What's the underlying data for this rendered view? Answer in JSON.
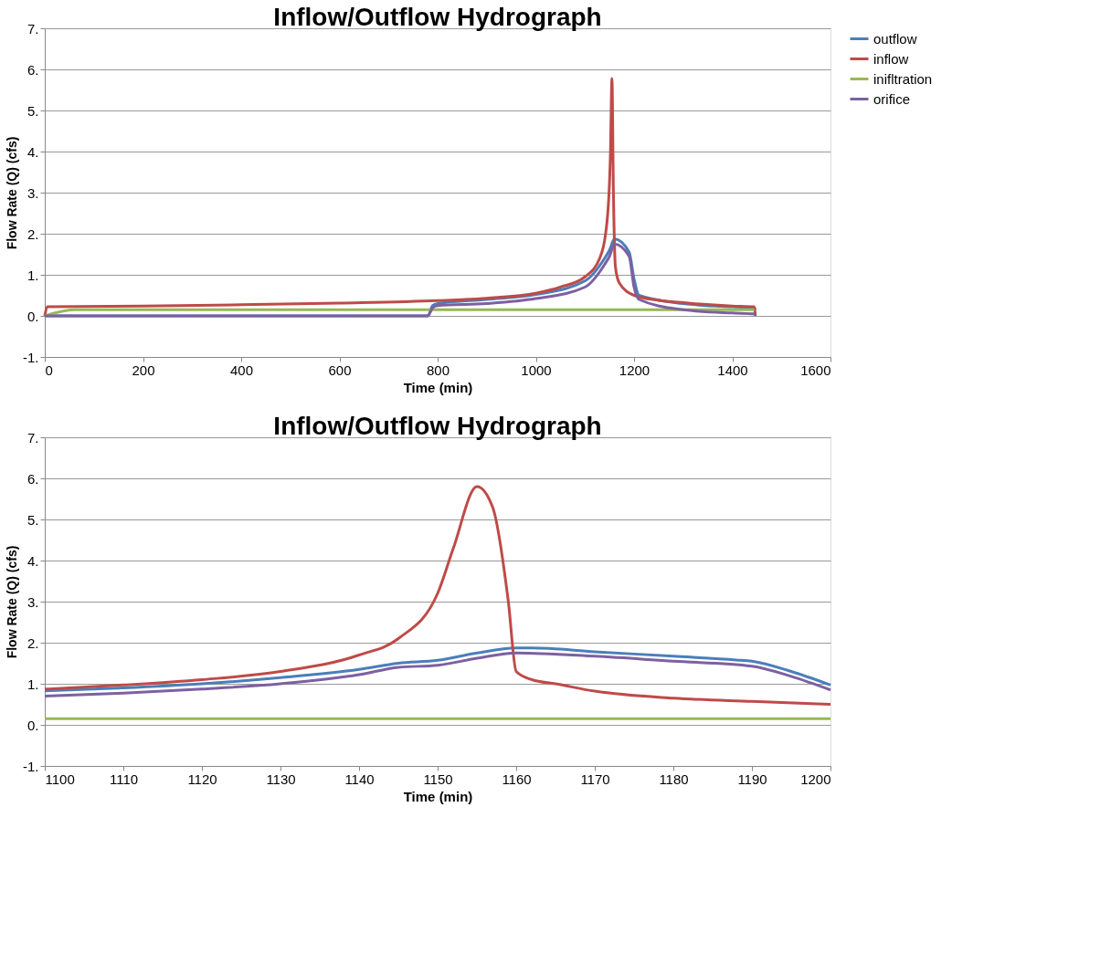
{
  "chart_data": [
    {
      "type": "line",
      "title": "Inflow/Outflow Hydrograph",
      "xlabel": "Time (min)",
      "ylabel": "Flow Rate (Q) (cfs)",
      "xlim": [
        0,
        1600
      ],
      "xticks": [
        0,
        200,
        400,
        600,
        800,
        1000,
        1200,
        1400,
        1600
      ],
      "ylim": [
        -1,
        7
      ],
      "yticks": [
        {
          "value": -1,
          "label": "-1."
        },
        {
          "value": 0,
          "label": "0."
        },
        {
          "value": 1,
          "label": "1."
        },
        {
          "value": 2,
          "label": "2."
        },
        {
          "value": 3,
          "label": "3."
        },
        {
          "value": 4,
          "label": "4."
        },
        {
          "value": 5,
          "label": "5."
        },
        {
          "value": 6,
          "label": "6."
        },
        {
          "value": 7,
          "label": "7."
        }
      ],
      "grid": "y",
      "legend": "right",
      "marker": "none",
      "line_style": "solid",
      "series": [
        {
          "name": "outflow",
          "color": "#4a7ebb",
          "x": [
            0,
            780,
            790,
            800,
            900,
            1000,
            1100,
            1140,
            1150,
            1160,
            1190,
            1200,
            1210,
            1300,
            1400,
            1445,
            1447
          ],
          "values": [
            0,
            0,
            0.25,
            0.3,
            0.4,
            0.52,
            0.85,
            1.4,
            1.6,
            1.87,
            1.55,
            0.9,
            0.5,
            0.3,
            0.22,
            0.2,
            0.15
          ]
        },
        {
          "name": "inflow",
          "color": "#be4b48",
          "x": [
            0,
            5,
            200,
            400,
            600,
            800,
            900,
            1000,
            1050,
            1100,
            1130,
            1145,
            1152,
            1155,
            1158,
            1162,
            1170,
            1200,
            1250,
            1300,
            1400,
            1445,
            1447
          ],
          "values": [
            0,
            0.22,
            0.24,
            0.27,
            0.31,
            0.37,
            0.43,
            0.55,
            0.7,
            0.95,
            1.4,
            2.3,
            4.0,
            5.78,
            3.0,
            1.2,
            0.8,
            0.5,
            0.38,
            0.32,
            0.24,
            0.22,
            0
          ]
        },
        {
          "name": "inifltration",
          "color": "#98b954",
          "x": [
            0,
            60,
            1445
          ],
          "values": [
            0,
            0.15,
            0.15
          ]
        },
        {
          "name": "orifice",
          "color": "#7d60a0",
          "x": [
            0,
            780,
            790,
            800,
            900,
            1000,
            1100,
            1140,
            1150,
            1160,
            1190,
            1200,
            1210,
            1300,
            1400,
            1445,
            1447
          ],
          "values": [
            0,
            0,
            0.2,
            0.25,
            0.3,
            0.42,
            0.7,
            1.25,
            1.45,
            1.75,
            1.45,
            0.7,
            0.4,
            0.15,
            0.07,
            0.05,
            0
          ]
        }
      ]
    },
    {
      "type": "line",
      "title": "Inflow/Outflow Hydrograph",
      "xlabel": "Time (min)",
      "ylabel": "Flow Rate (Q) (cfs)",
      "xlim": [
        1100,
        1200
      ],
      "xticks": [
        1100,
        1110,
        1120,
        1130,
        1140,
        1150,
        1160,
        1170,
        1180,
        1190,
        1200
      ],
      "ylim": [
        -1,
        7
      ],
      "yticks": [
        {
          "value": -1,
          "label": "-1."
        },
        {
          "value": 0,
          "label": "0."
        },
        {
          "value": 1,
          "label": "1."
        },
        {
          "value": 2,
          "label": "2."
        },
        {
          "value": 3,
          "label": "3."
        },
        {
          "value": 4,
          "label": "4."
        },
        {
          "value": 5,
          "label": "5."
        },
        {
          "value": 6,
          "label": "6."
        },
        {
          "value": 7,
          "label": "7."
        }
      ],
      "grid": "y",
      "legend": "right",
      "marker": "none",
      "line_style": "solid",
      "series": [
        {
          "name": "outflow",
          "color": "#4a7ebb",
          "x": [
            1100,
            1110,
            1120,
            1130,
            1140,
            1145,
            1150,
            1155,
            1160,
            1162,
            1170,
            1180,
            1188,
            1190,
            1195,
            1200
          ],
          "values": [
            0.83,
            0.9,
            1.0,
            1.15,
            1.35,
            1.5,
            1.57,
            1.75,
            1.87,
            1.87,
            1.78,
            1.67,
            1.58,
            1.55,
            1.3,
            0.97
          ]
        },
        {
          "name": "inflow",
          "color": "#be4b48",
          "x": [
            1100,
            1110,
            1120,
            1130,
            1140,
            1145,
            1150,
            1152,
            1155,
            1157,
            1159,
            1160,
            1162,
            1165,
            1170,
            1180,
            1190,
            1200
          ],
          "values": [
            0.87,
            0.97,
            1.1,
            1.3,
            1.7,
            2.1,
            3.2,
            4.3,
            5.8,
            5.3,
            3.0,
            1.3,
            1.1,
            1.0,
            0.82,
            0.65,
            0.57,
            0.5
          ]
        },
        {
          "name": "inifltration",
          "color": "#98b954",
          "x": [
            1100,
            1200
          ],
          "values": [
            0.15,
            0.15
          ]
        },
        {
          "name": "orifice",
          "color": "#7d60a0",
          "x": [
            1100,
            1110,
            1120,
            1130,
            1140,
            1145,
            1150,
            1155,
            1160,
            1170,
            1180,
            1190,
            1195,
            1200
          ],
          "values": [
            0.7,
            0.77,
            0.87,
            1.0,
            1.22,
            1.4,
            1.45,
            1.62,
            1.75,
            1.67,
            1.55,
            1.43,
            1.18,
            0.85
          ]
        }
      ]
    }
  ]
}
